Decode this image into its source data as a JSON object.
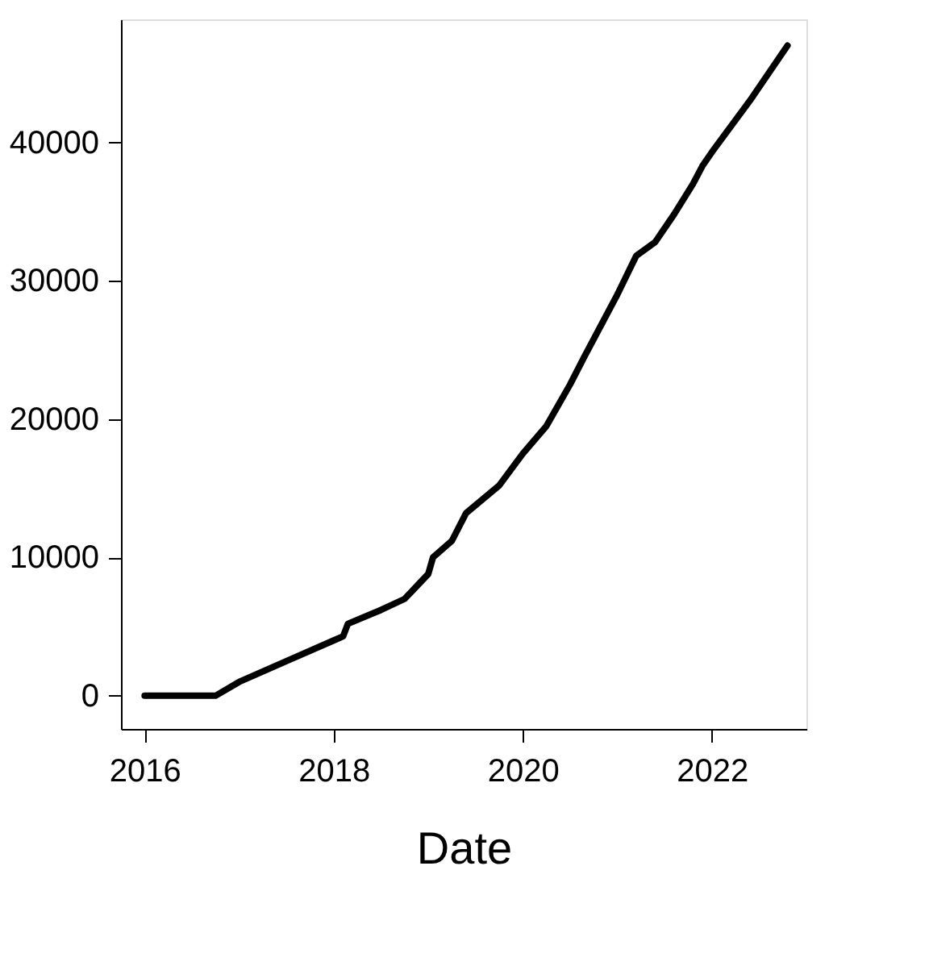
{
  "chart_data": {
    "type": "line",
    "xlabel": "Date",
    "x": [
      2016.0,
      2016.75,
      2017.0,
      2017.5,
      2018.0,
      2018.1,
      2018.15,
      2018.5,
      2018.75,
      2019.0,
      2019.05,
      2019.25,
      2019.4,
      2019.75,
      2020.0,
      2020.25,
      2020.5,
      2020.65,
      2021.0,
      2021.2,
      2021.4,
      2021.6,
      2021.8,
      2021.9,
      2022.0,
      2022.4,
      2022.8
    ],
    "series": [
      {
        "color": "#000000",
        "values": [
          0,
          0,
          1000,
          2500,
          4000,
          4300,
          5200,
          6200,
          7000,
          8800,
          10000,
          11200,
          13200,
          15200,
          17500,
          19500,
          22500,
          24500,
          29000,
          31800,
          32800,
          34800,
          37000,
          38300,
          39300,
          43000,
          47000
        ]
      }
    ],
    "xlim": [
      2015.75,
      2023.0
    ],
    "xticks": [
      2016,
      2018,
      2020,
      2022
    ],
    "ylim": [
      -2400,
      48900
    ],
    "yticks": [
      0,
      10000,
      20000,
      30000,
      40000
    ],
    "grid": false,
    "legend": false,
    "marker": "none",
    "line_style": "solid"
  }
}
